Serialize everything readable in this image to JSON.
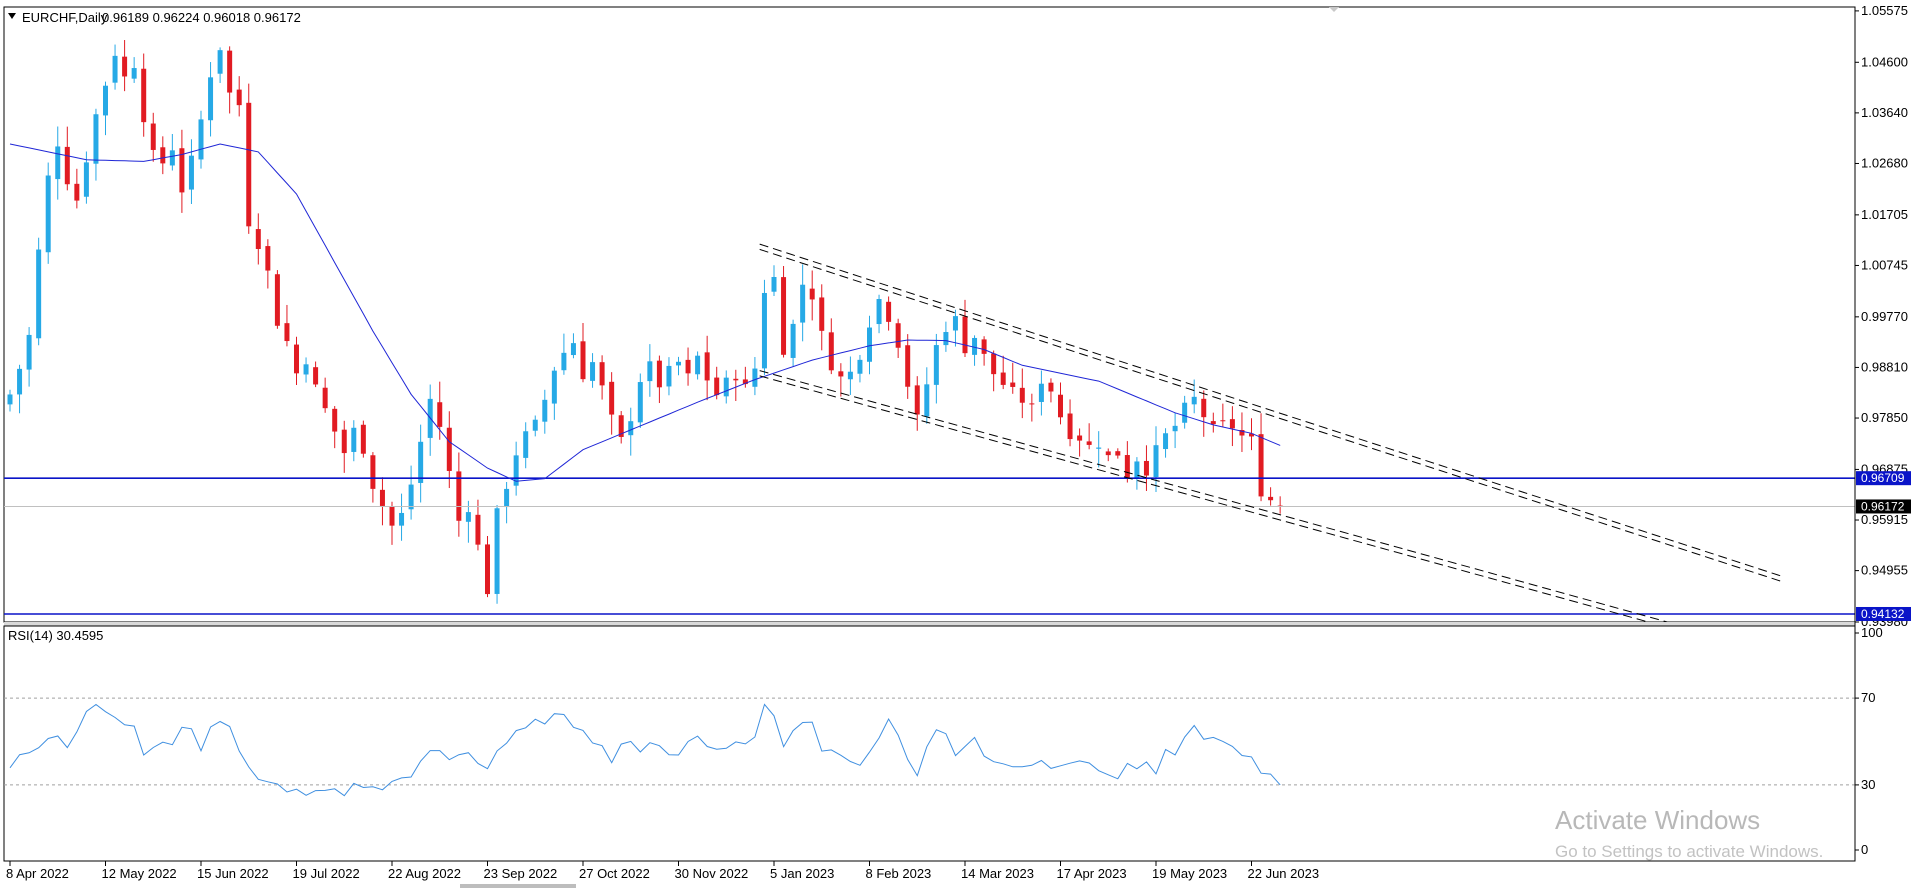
{
  "header": {
    "symbol": "EURCHF,Daily",
    "ohlc": "0.96189 0.96224 0.96018 0.96172"
  },
  "rsi_label": "RSI(14) 30.4595",
  "watermark": {
    "title": "Activate Windows",
    "subtitle": "Go to Settings to activate Windows."
  },
  "colors": {
    "bull": "#26a9e6",
    "bear": "#e11b22",
    "ma": "#1f26d6",
    "rsi": "#3f8fe0",
    "hline": "#0a14c8",
    "current_tag": "#000000"
  },
  "chart_data": [
    {
      "type": "candlestick",
      "title": "EURCHF,Daily",
      "ohlc_last": [
        0.96189,
        0.96224,
        0.96018,
        0.96172
      ],
      "x_ticks": [
        "8 Apr 2022",
        "12 May 2022",
        "15 Jun 2022",
        "19 Jul 2022",
        "22 Aug 2022",
        "23 Sep 2022",
        "27 Oct 2022",
        "30 Nov 2022",
        "5 Jan 2023",
        "8 Feb 2023",
        "14 Mar 2023",
        "17 Apr 2023",
        "19 May 2023",
        "22 Jun 2023"
      ],
      "y_ticks": [
        1.05575,
        1.046,
        1.0364,
        1.0268,
        1.01705,
        1.00745,
        0.9977,
        0.9881,
        0.9785,
        0.96875,
        0.95915,
        0.94955,
        0.9398
      ],
      "ylim": [
        0.9398,
        1.0563
      ],
      "close_path": [
        [
          0,
          0.983
        ],
        [
          1,
          0.988
        ],
        [
          2,
          0.994
        ],
        [
          3,
          1.01
        ],
        [
          4,
          1.024
        ],
        [
          5,
          1.031
        ],
        [
          6,
          1.024
        ],
        [
          7,
          1.02
        ],
        [
          8,
          1.028
        ],
        [
          9,
          1.036
        ],
        [
          10,
          1.042
        ],
        [
          11,
          1.048
        ],
        [
          12,
          1.043
        ],
        [
          13,
          1.046
        ],
        [
          14,
          1.036
        ],
        [
          15,
          1.028
        ],
        [
          16,
          1.027
        ],
        [
          17,
          1.03
        ],
        [
          18,
          1.022
        ],
        [
          19,
          1.027
        ],
        [
          20,
          1.035
        ],
        [
          21,
          1.044
        ],
        [
          22,
          1.049
        ],
        [
          23,
          1.04
        ],
        [
          24,
          1.038
        ],
        [
          25,
          1.016
        ],
        [
          26,
          1.012
        ],
        [
          27,
          1.006
        ],
        [
          28,
          0.997
        ],
        [
          29,
          0.993
        ],
        [
          30,
          0.987
        ],
        [
          31,
          0.99
        ],
        [
          32,
          0.984
        ],
        [
          33,
          0.98
        ],
        [
          34,
          0.976
        ],
        [
          35,
          0.972
        ],
        [
          36,
          0.976
        ],
        [
          37,
          0.973
        ],
        [
          38,
          0.966
        ],
        [
          39,
          0.962
        ],
        [
          40,
          0.958
        ],
        [
          41,
          0.96
        ],
        [
          42,
          0.966
        ],
        [
          43,
          0.974
        ],
        [
          44,
          0.982
        ],
        [
          45,
          0.977
        ],
        [
          46,
          0.968
        ],
        [
          47,
          0.959
        ],
        [
          48,
          0.962
        ],
        [
          49,
          0.954
        ],
        [
          50,
          0.946
        ],
        [
          51,
          0.96
        ],
        [
          52,
          0.966
        ],
        [
          53,
          0.972
        ],
        [
          54,
          0.975
        ],
        [
          55,
          0.977
        ],
        [
          56,
          0.982
        ],
        [
          57,
          0.988
        ],
        [
          58,
          0.991
        ],
        [
          59,
          0.993
        ],
        [
          60,
          0.987
        ],
        [
          61,
          0.989
        ],
        [
          62,
          0.984
        ],
        [
          63,
          0.978
        ],
        [
          64,
          0.974
        ],
        [
          65,
          0.979
        ],
        [
          66,
          0.986
        ],
        [
          67,
          0.988
        ],
        [
          68,
          0.985
        ],
        [
          69,
          0.987
        ],
        [
          70,
          0.989
        ],
        [
          71,
          0.986
        ],
        [
          72,
          0.99
        ],
        [
          73,
          0.986
        ],
        [
          74,
          0.983
        ],
        [
          75,
          0.985
        ],
        [
          76,
          0.987
        ],
        [
          77,
          0.984
        ],
        [
          78,
          0.988
        ],
        [
          79,
          1.003
        ],
        [
          80,
          1.005
        ],
        [
          81,
          0.992
        ],
        [
          82,
          0.996
        ],
        [
          83,
          1.004
        ],
        [
          84,
          1.002
        ],
        [
          85,
          0.994
        ],
        [
          86,
          0.989
        ],
        [
          87,
          0.986
        ],
        [
          88,
          0.987
        ],
        [
          89,
          0.991
        ],
        [
          90,
          0.997
        ],
        [
          91,
          1.001
        ],
        [
          92,
          0.998
        ],
        [
          93,
          0.993
        ],
        [
          94,
          0.985
        ],
        [
          95,
          0.978
        ],
        [
          96,
          0.985
        ],
        [
          97,
          0.992
        ],
        [
          98,
          0.996
        ],
        [
          99,
          0.997
        ],
        [
          100,
          0.992
        ],
        [
          101,
          0.994
        ],
        [
          102,
          0.99
        ],
        [
          103,
          0.987
        ],
        [
          104,
          0.985
        ],
        [
          105,
          0.983
        ],
        [
          106,
          0.982
        ],
        [
          107,
          0.98
        ],
        [
          108,
          0.986
        ],
        [
          109,
          0.984
        ],
        [
          110,
          0.979
        ],
        [
          111,
          0.976
        ],
        [
          112,
          0.975
        ],
        [
          113,
          0.973
        ],
        [
          114,
          0.974
        ],
        [
          115,
          0.971
        ],
        [
          116,
          0.972
        ],
        [
          117,
          0.968
        ],
        [
          118,
          0.971
        ],
        [
          119,
          0.969
        ],
        [
          120,
          0.972
        ],
        [
          121,
          0.975
        ],
        [
          122,
          0.977
        ],
        [
          123,
          0.98
        ],
        [
          124,
          0.982
        ],
        [
          125,
          0.979
        ],
        [
          126,
          0.976
        ],
        [
          127,
          0.977
        ],
        [
          128,
          0.977
        ],
        [
          129,
          0.975
        ],
        [
          130,
          0.974
        ],
        [
          131,
          0.965
        ],
        [
          132,
          0.963
        ],
        [
          133,
          0.9617
        ]
      ],
      "ma_path": [
        [
          0,
          1.0305
        ],
        [
          8,
          1.0275
        ],
        [
          14,
          1.0272
        ],
        [
          18,
          1.0285
        ],
        [
          22,
          1.0305
        ],
        [
          26,
          1.029
        ],
        [
          30,
          1.021
        ],
        [
          34,
          1.008
        ],
        [
          38,
          0.995
        ],
        [
          42,
          0.983
        ],
        [
          46,
          0.974
        ],
        [
          50,
          0.969
        ],
        [
          53,
          0.9665
        ],
        [
          56,
          0.967
        ],
        [
          60,
          0.9725
        ],
        [
          66,
          0.977
        ],
        [
          72,
          0.9815
        ],
        [
          78,
          0.9858
        ],
        [
          84,
          0.9895
        ],
        [
          90,
          0.9922
        ],
        [
          94,
          0.9933
        ],
        [
          98,
          0.9932
        ],
        [
          102,
          0.9915
        ],
        [
          106,
          0.9885
        ],
        [
          110,
          0.987
        ],
        [
          114,
          0.9855
        ],
        [
          118,
          0.9825
        ],
        [
          122,
          0.9795
        ],
        [
          126,
          0.9772
        ],
        [
          130,
          0.9756
        ],
        [
          133,
          0.9733
        ]
      ],
      "channel_lines": [
        {
          "start": [
            78.5,
            1.0115
          ],
          "end": [
            185.5,
            0.9485
          ]
        },
        {
          "start": [
            78.5,
            1.0105
          ],
          "end": [
            185.5,
            0.9475
          ]
        },
        {
          "start": [
            78.5,
            0.9875
          ],
          "end": [
            185.5,
            0.9338
          ]
        },
        {
          "start": [
            78.5,
            0.9865
          ],
          "end": [
            185.5,
            0.9328
          ]
        }
      ],
      "horizontal_levels": [
        0.96709,
        0.94132
      ],
      "current_price": 0.96172,
      "price_tags": [
        "0.96709",
        "0.96172",
        "0.94132"
      ]
    },
    {
      "type": "line",
      "title": "RSI(14) 30.4595",
      "y_ticks": [
        100,
        70,
        30,
        0
      ],
      "ylim": [
        0,
        100
      ],
      "levels": [
        70,
        30
      ],
      "last_value": 30.4595,
      "values": [
        [
          0,
          37
        ],
        [
          2,
          46
        ],
        [
          4,
          53
        ],
        [
          6,
          49
        ],
        [
          8,
          62
        ],
        [
          9,
          68
        ],
        [
          10,
          63
        ],
        [
          12,
          55
        ],
        [
          13,
          57
        ],
        [
          14,
          45
        ],
        [
          16,
          50
        ],
        [
          17,
          48
        ],
        [
          18,
          58
        ],
        [
          19,
          54
        ],
        [
          20,
          48
        ],
        [
          22,
          62
        ],
        [
          23,
          58
        ],
        [
          24,
          46
        ],
        [
          25,
          38
        ],
        [
          26,
          32
        ],
        [
          28,
          29
        ],
        [
          30,
          26
        ],
        [
          32,
          30
        ],
        [
          34,
          26
        ],
        [
          36,
          29
        ],
        [
          38,
          27
        ],
        [
          40,
          30
        ],
        [
          42,
          33
        ],
        [
          44,
          47
        ],
        [
          46,
          40
        ],
        [
          48,
          44
        ],
        [
          50,
          36
        ],
        [
          51,
          47
        ],
        [
          53,
          55
        ],
        [
          55,
          61
        ],
        [
          56,
          58
        ],
        [
          58,
          63
        ],
        [
          60,
          54
        ],
        [
          61,
          48
        ],
        [
          63,
          43
        ],
        [
          65,
          52
        ],
        [
          66,
          46
        ],
        [
          68,
          49
        ],
        [
          70,
          44
        ],
        [
          72,
          52
        ],
        [
          74,
          49
        ],
        [
          76,
          47
        ],
        [
          78,
          51
        ],
        [
          79,
          66
        ],
        [
          80,
          62
        ],
        [
          81,
          50
        ],
        [
          83,
          59
        ],
        [
          84,
          56
        ],
        [
          85,
          48
        ],
        [
          86,
          44
        ],
        [
          88,
          40
        ],
        [
          90,
          43
        ],
        [
          91,
          51
        ],
        [
          92,
          60
        ],
        [
          93,
          52
        ],
        [
          94,
          42
        ],
        [
          95,
          33
        ],
        [
          96,
          47
        ],
        [
          97,
          55
        ],
        [
          98,
          51
        ],
        [
          99,
          46
        ],
        [
          101,
          51
        ],
        [
          102,
          43
        ],
        [
          104,
          41
        ],
        [
          106,
          37
        ],
        [
          108,
          44
        ],
        [
          109,
          40
        ],
        [
          110,
          36
        ],
        [
          112,
          39
        ],
        [
          114,
          37
        ],
        [
          116,
          34
        ],
        [
          118,
          40
        ],
        [
          120,
          38
        ],
        [
          121,
          47
        ],
        [
          122,
          43
        ],
        [
          124,
          56
        ],
        [
          125,
          52
        ],
        [
          126,
          54
        ],
        [
          127,
          50
        ],
        [
          128,
          49
        ],
        [
          129,
          46
        ],
        [
          130,
          45
        ],
        [
          131,
          33
        ],
        [
          132,
          37
        ],
        [
          133,
          30
        ]
      ]
    }
  ]
}
